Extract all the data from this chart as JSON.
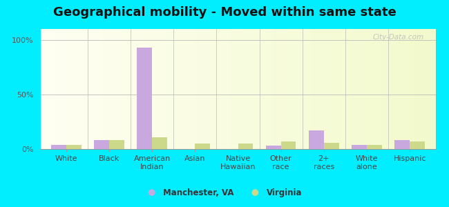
{
  "title": "Geographical mobility - Moved within same state",
  "categories": [
    "White",
    "Black",
    "American\nIndian",
    "Asian",
    "Native\nHawaiian",
    "Other\nrace",
    "2+\nraces",
    "White\nalone",
    "Hispanic"
  ],
  "manchester_values": [
    4,
    8,
    93,
    0,
    0,
    3,
    17,
    4,
    8
  ],
  "virginia_values": [
    4,
    8,
    11,
    5,
    5,
    7,
    6,
    4,
    7
  ],
  "manchester_color": "#c9a8df",
  "virginia_color": "#cdd98a",
  "bar_width": 0.35,
  "ylim": [
    0,
    110
  ],
  "yticks": [
    0,
    50,
    100
  ],
  "ytick_labels": [
    "0%",
    "50%",
    "100%"
  ],
  "legend_labels": [
    "Manchester, VA",
    "Virginia"
  ],
  "outer_bg": "#00eeff",
  "watermark": "City-Data.com",
  "title_fontsize": 13,
  "axis_fontsize": 8
}
